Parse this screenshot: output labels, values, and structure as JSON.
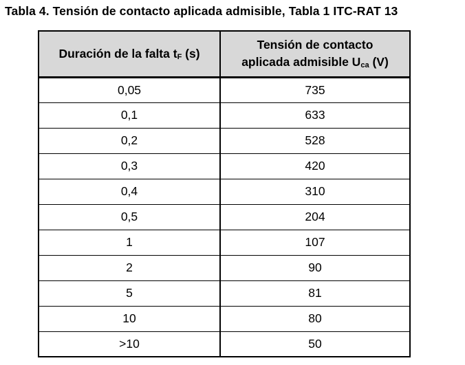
{
  "caption": "Tabla 4. Tensión de contacto aplicada admisible, Tabla 1 ITC-RAT 13",
  "table": {
    "header": {
      "col1_text": "Duración de la falta t",
      "col1_sub": "F",
      "col1_suffix": " (s)",
      "col2_line1": "Tensión de contacto",
      "col2_line2_text": "aplicada admisible U",
      "col2_line2_sub": "ca",
      "col2_line2_suffix": " (V)"
    },
    "rows": [
      {
        "duration": "0,05",
        "voltage": "735"
      },
      {
        "duration": "0,1",
        "voltage": "633"
      },
      {
        "duration": "0,2",
        "voltage": "528"
      },
      {
        "duration": "0,3",
        "voltage": "420"
      },
      {
        "duration": "0,4",
        "voltage": "310"
      },
      {
        "duration": "0,5",
        "voltage": "204"
      },
      {
        "duration": "1",
        "voltage": "107"
      },
      {
        "duration": "2",
        "voltage": "90"
      },
      {
        "duration": "5",
        "voltage": "81"
      },
      {
        "duration": "10",
        "voltage": "80"
      },
      {
        "duration": ">10",
        "voltage": "50"
      }
    ]
  },
  "colors": {
    "header_background": "#d8d8d8",
    "border": "#000000",
    "text": "#000000"
  }
}
